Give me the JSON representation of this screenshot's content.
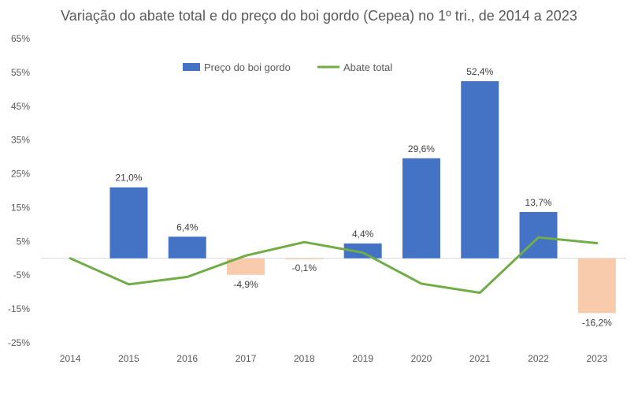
{
  "chart_data": {
    "type": "bar",
    "title": "Variação do abate total e do preço do boi gordo (Cepea) no 1º tri., de 2014 a 2023",
    "categories": [
      "2014",
      "2015",
      "2016",
      "2017",
      "2018",
      "2019",
      "2020",
      "2021",
      "2022",
      "2023"
    ],
    "series": [
      {
        "name": "Preço do boi gordo",
        "kind": "bar",
        "values": [
          null,
          21.0,
          6.4,
          -4.9,
          -0.1,
          4.4,
          29.6,
          52.4,
          13.7,
          -16.2
        ],
        "labels": [
          "",
          "21,0%",
          "6,4%",
          "-4,9%",
          "-0,1%",
          "4,4%",
          "29,6%",
          "52,4%",
          "13,7%",
          "-16,2%"
        ],
        "color_positive": "#4472C4",
        "color_negative": "#F8CBAD"
      },
      {
        "name": "Abate total",
        "kind": "line",
        "values": [
          0.0,
          -7.7,
          -5.5,
          0.8,
          4.8,
          1.7,
          -7.5,
          -10.2,
          6.2,
          4.5
        ],
        "color": "#70AD47"
      }
    ],
    "ylim": [
      -25,
      65
    ],
    "yticks": [
      -25,
      -15,
      -5,
      5,
      15,
      25,
      35,
      45,
      55,
      65
    ],
    "ytick_labels": [
      "-25%",
      "-15%",
      "-5%",
      "5%",
      "15%",
      "25%",
      "35%",
      "45%",
      "55%",
      "65%"
    ],
    "legend_position": "top-center",
    "grid": false
  }
}
